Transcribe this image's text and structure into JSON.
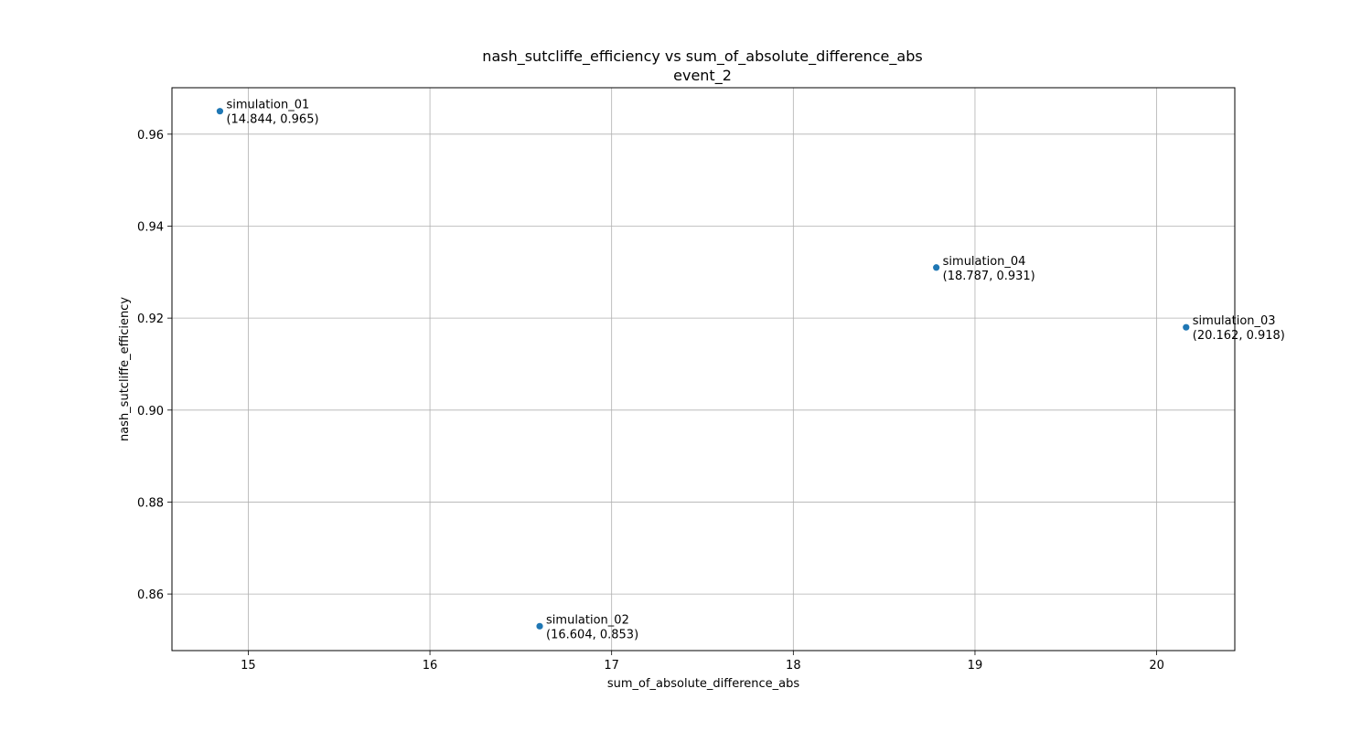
{
  "chart_data": {
    "type": "scatter",
    "title": "nash_sutcliffe_efficiency vs sum_of_absolute_difference_abs",
    "subtitle": "event_2",
    "xlabel": "sum_of_absolute_difference_abs",
    "ylabel": "nash_sutcliffe_efficiency",
    "xlim": [
      14.58,
      20.43
    ],
    "ylim": [
      0.8477,
      0.9701
    ],
    "xticks": [
      15,
      16,
      17,
      18,
      19,
      20
    ],
    "yticks": [
      0.86,
      0.88,
      0.9,
      0.92,
      0.94,
      0.96
    ],
    "xtick_labels": [
      "15",
      "16",
      "17",
      "18",
      "19",
      "20"
    ],
    "ytick_labels": [
      "0.86",
      "0.88",
      "0.90",
      "0.92",
      "0.94",
      "0.96"
    ],
    "grid": true,
    "marker_color": "#1f77b4",
    "points": [
      {
        "name": "simulation_01",
        "x": 14.844,
        "y": 0.965,
        "coord_label": "(14.844, 0.965)"
      },
      {
        "name": "simulation_02",
        "x": 16.604,
        "y": 0.853,
        "coord_label": "(16.604, 0.853)"
      },
      {
        "name": "simulation_03",
        "x": 20.162,
        "y": 0.918,
        "coord_label": "(20.162, 0.918)"
      },
      {
        "name": "simulation_04",
        "x": 18.787,
        "y": 0.931,
        "coord_label": "(18.787, 0.931)"
      }
    ]
  }
}
